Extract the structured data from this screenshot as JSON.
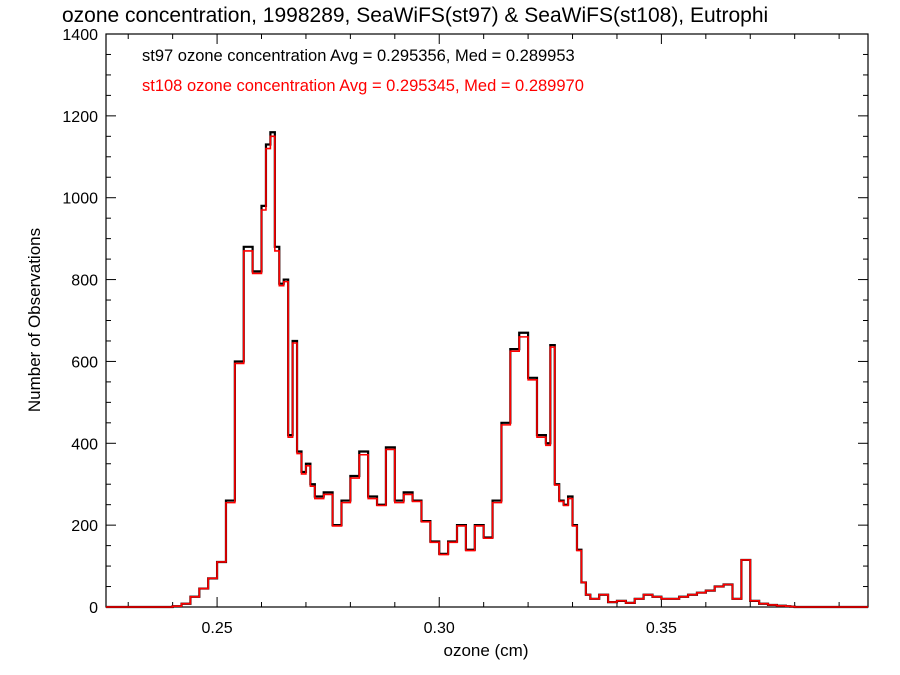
{
  "chart_data": {
    "type": "line",
    "title": "ozone concentration, 1998289, SeaWiFS(st97) & SeaWiFS(st108), Eutrophi",
    "xlabel": "ozone (cm)",
    "ylabel": "Number of Observations",
    "xlim": [
      0.225,
      0.3965
    ],
    "ylim": [
      0,
      1400
    ],
    "xticks": [
      "0.25",
      "0.30",
      "0.35"
    ],
    "xtick_values": [
      0.25,
      0.3,
      0.35
    ],
    "yticks": [
      "0",
      "200",
      "400",
      "600",
      "800",
      "1000",
      "1200",
      "1400"
    ],
    "ytick_values": [
      0,
      200,
      400,
      600,
      800,
      1000,
      1200,
      1400
    ],
    "grid": false,
    "annotations": [
      {
        "text": "st97 ozone concentration Avg = 0.295356, Med = 0.289953",
        "color": "#000000"
      },
      {
        "text": "st108 ozone concentration Avg = 0.295345, Med = 0.289970",
        "color": "#ff0000"
      }
    ],
    "series": [
      {
        "color": "#000000",
        "style": "histogram-step",
        "x": [
          0.24,
          0.242,
          0.244,
          0.246,
          0.248,
          0.25,
          0.252,
          0.254,
          0.256,
          0.258,
          0.26,
          0.261,
          0.262,
          0.263,
          0.264,
          0.265,
          0.266,
          0.267,
          0.268,
          0.269,
          0.27,
          0.271,
          0.272,
          0.274,
          0.276,
          0.278,
          0.28,
          0.282,
          0.284,
          0.286,
          0.288,
          0.29,
          0.292,
          0.294,
          0.296,
          0.298,
          0.3,
          0.302,
          0.304,
          0.306,
          0.308,
          0.31,
          0.312,
          0.314,
          0.316,
          0.318,
          0.32,
          0.322,
          0.324,
          0.325,
          0.326,
          0.327,
          0.328,
          0.329,
          0.33,
          0.331,
          0.332,
          0.333,
          0.334,
          0.336,
          0.338,
          0.34,
          0.342,
          0.344,
          0.346,
          0.348,
          0.35,
          0.352,
          0.354,
          0.356,
          0.358,
          0.36,
          0.362,
          0.364,
          0.366,
          0.368,
          0.37,
          0.372,
          0.374,
          0.376,
          0.378,
          0.379,
          0.38,
          0.382,
          0.384,
          0.386,
          0.388,
          0.39
        ],
        "values": [
          2,
          8,
          25,
          45,
          70,
          110,
          260,
          600,
          880,
          820,
          980,
          1130,
          1160,
          880,
          790,
          800,
          420,
          650,
          380,
          330,
          350,
          300,
          270,
          280,
          200,
          260,
          320,
          380,
          270,
          250,
          390,
          260,
          280,
          260,
          210,
          160,
          130,
          160,
          200,
          140,
          200,
          170,
          260,
          450,
          630,
          670,
          560,
          420,
          400,
          640,
          300,
          260,
          250,
          270,
          200,
          140,
          60,
          30,
          20,
          30,
          12,
          15,
          10,
          20,
          30,
          25,
          20,
          20,
          25,
          30,
          35,
          40,
          50,
          55,
          20,
          115,
          15,
          8,
          5,
          3,
          2,
          1,
          0,
          0,
          0,
          0,
          0,
          0
        ],
        "name": ""
      },
      {
        "color": "#ff0000",
        "style": "histogram-step",
        "x": [
          0.24,
          0.242,
          0.244,
          0.246,
          0.248,
          0.25,
          0.252,
          0.254,
          0.256,
          0.258,
          0.26,
          0.261,
          0.262,
          0.263,
          0.264,
          0.265,
          0.266,
          0.267,
          0.268,
          0.269,
          0.27,
          0.271,
          0.272,
          0.274,
          0.276,
          0.278,
          0.28,
          0.282,
          0.284,
          0.286,
          0.288,
          0.29,
          0.292,
          0.294,
          0.296,
          0.298,
          0.3,
          0.302,
          0.304,
          0.306,
          0.308,
          0.31,
          0.312,
          0.314,
          0.316,
          0.318,
          0.32,
          0.322,
          0.324,
          0.325,
          0.326,
          0.327,
          0.328,
          0.329,
          0.33,
          0.331,
          0.332,
          0.333,
          0.334,
          0.336,
          0.338,
          0.34,
          0.342,
          0.344,
          0.346,
          0.348,
          0.35,
          0.352,
          0.354,
          0.356,
          0.358,
          0.36,
          0.362,
          0.364,
          0.366,
          0.368,
          0.37,
          0.372,
          0.374,
          0.376,
          0.378,
          0.379,
          0.38,
          0.382,
          0.384,
          0.386,
          0.388,
          0.39
        ],
        "values": [
          2,
          8,
          25,
          45,
          70,
          110,
          255,
          595,
          870,
          815,
          970,
          1120,
          1150,
          870,
          785,
          795,
          415,
          645,
          375,
          325,
          345,
          295,
          265,
          275,
          198,
          255,
          315,
          372,
          265,
          248,
          385,
          255,
          275,
          258,
          208,
          158,
          128,
          158,
          198,
          138,
          198,
          168,
          255,
          445,
          625,
          660,
          555,
          415,
          395,
          635,
          298,
          258,
          248,
          265,
          198,
          138,
          60,
          30,
          20,
          30,
          12,
          15,
          10,
          20,
          30,
          25,
          20,
          20,
          25,
          30,
          35,
          40,
          50,
          55,
          20,
          115,
          15,
          8,
          5,
          3,
          2,
          1,
          0,
          0,
          0,
          0,
          0,
          0
        ],
        "name": ""
      }
    ]
  }
}
